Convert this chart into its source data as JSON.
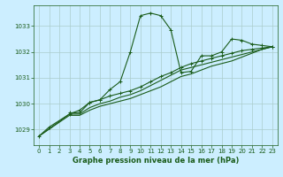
{
  "bg_color": "#cceeff",
  "grid_color": "#aacccc",
  "line_color": "#1a5c1a",
  "title": "Graphe pression niveau de la mer (hPa)",
  "xlim": [
    -0.5,
    23.5
  ],
  "ylim": [
    1028.4,
    1033.8
  ],
  "yticks": [
    1029,
    1030,
    1031,
    1032,
    1033
  ],
  "xticks": [
    0,
    1,
    2,
    3,
    4,
    5,
    6,
    7,
    8,
    9,
    10,
    11,
    12,
    13,
    14,
    15,
    16,
    17,
    18,
    19,
    20,
    21,
    22,
    23
  ],
  "line1_x": [
    0,
    1,
    3,
    4,
    5,
    6,
    7,
    8,
    9,
    10,
    11,
    12,
    13,
    14,
    15,
    16,
    17,
    18,
    19,
    20,
    21,
    22,
    23
  ],
  "line1_y": [
    1028.75,
    1029.1,
    1029.6,
    1029.75,
    1030.05,
    1030.15,
    1030.55,
    1030.85,
    1032.0,
    1033.4,
    1033.5,
    1033.4,
    1032.85,
    1031.2,
    1031.25,
    1031.85,
    1031.85,
    1032.0,
    1032.5,
    1032.45,
    1032.3,
    1032.25,
    1032.2
  ],
  "line2_x": [
    3,
    4,
    5,
    6,
    7,
    8,
    9,
    10,
    11,
    12,
    13,
    14,
    15,
    16,
    17,
    18,
    19,
    20,
    21,
    22,
    23
  ],
  "line2_y": [
    1029.65,
    1029.65,
    1030.05,
    1030.15,
    1030.3,
    1030.4,
    1030.5,
    1030.65,
    1030.85,
    1031.05,
    1031.2,
    1031.4,
    1031.55,
    1031.65,
    1031.75,
    1031.85,
    1031.95,
    1032.05,
    1032.1,
    1032.15,
    1032.2
  ],
  "line3_x": [
    0,
    3,
    4,
    5,
    6,
    7,
    8,
    9,
    10,
    11,
    12,
    13,
    14,
    15,
    16,
    17,
    18,
    19,
    20,
    21,
    22,
    23
  ],
  "line3_y": [
    1028.75,
    1029.6,
    1029.6,
    1029.85,
    1030.0,
    1030.1,
    1030.25,
    1030.35,
    1030.5,
    1030.7,
    1030.9,
    1031.1,
    1031.3,
    1031.4,
    1031.5,
    1031.6,
    1031.7,
    1031.8,
    1031.9,
    1032.0,
    1032.1,
    1032.2
  ],
  "line4_x": [
    0,
    3,
    4,
    5,
    6,
    7,
    8,
    9,
    10,
    11,
    12,
    13,
    14,
    15,
    16,
    17,
    18,
    19,
    20,
    21,
    22,
    23
  ],
  "line4_y": [
    1028.75,
    1029.55,
    1029.55,
    1029.75,
    1029.9,
    1030.0,
    1030.1,
    1030.2,
    1030.35,
    1030.5,
    1030.65,
    1030.85,
    1031.05,
    1031.15,
    1031.3,
    1031.45,
    1031.55,
    1031.65,
    1031.8,
    1031.95,
    1032.1,
    1032.2
  ],
  "marker_size": 3,
  "line_width": 0.8,
  "tick_fontsize": 5,
  "title_fontsize": 6
}
